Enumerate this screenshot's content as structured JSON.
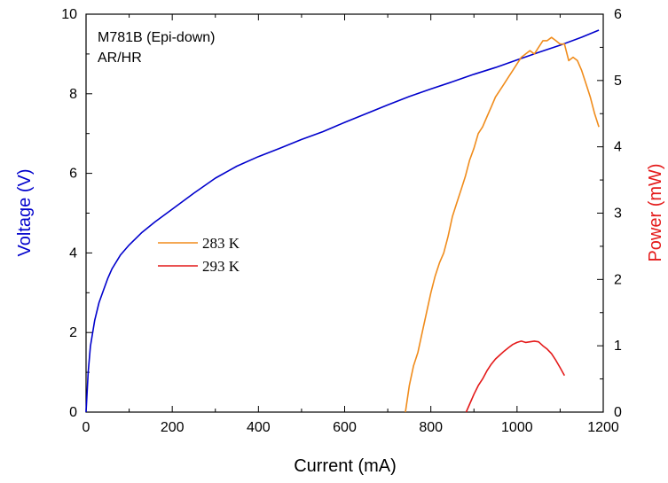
{
  "chart_data": {
    "type": "line",
    "annotation": [
      "M781B (Epi-down)",
      "AR/HR"
    ],
    "xlabel": "Current (mA)",
    "ylabel": "Voltage (V)",
    "y2label": "Power (mW)",
    "xlim": [
      0,
      1200
    ],
    "ylim": [
      0,
      10
    ],
    "y2lim": [
      0,
      6
    ],
    "xticks": [
      0,
      200,
      400,
      600,
      800,
      1000,
      1200
    ],
    "yticks": [
      0,
      2,
      4,
      6,
      8,
      10
    ],
    "y2ticks": [
      0,
      1,
      2,
      3,
      4,
      5,
      6
    ],
    "legend_position": "center-left",
    "grid": false,
    "series": [
      {
        "name": "",
        "axis": "left",
        "color": "#0000cc",
        "x": [
          0,
          5,
          10,
          20,
          30,
          40,
          50,
          60,
          80,
          100,
          130,
          160,
          200,
          250,
          300,
          350,
          400,
          450,
          500,
          550,
          600,
          650,
          700,
          750,
          800,
          850,
          900,
          950,
          1000,
          1050,
          1100,
          1150,
          1190
        ],
        "y": [
          0,
          1.0,
          1.65,
          2.3,
          2.75,
          3.05,
          3.35,
          3.6,
          3.95,
          4.2,
          4.52,
          4.78,
          5.1,
          5.5,
          5.88,
          6.18,
          6.42,
          6.63,
          6.85,
          7.05,
          7.28,
          7.5,
          7.72,
          7.93,
          8.12,
          8.3,
          8.49,
          8.66,
          8.85,
          9.04,
          9.22,
          9.42,
          9.6
        ]
      },
      {
        "name": "283 K",
        "axis": "right",
        "color": "#f08c1c",
        "x": [
          741,
          750,
          760,
          770,
          780,
          790,
          800,
          810,
          820,
          830,
          840,
          850,
          860,
          870,
          880,
          890,
          900,
          910,
          920,
          930,
          940,
          950,
          960,
          970,
          980,
          990,
          1000,
          1010,
          1020,
          1030,
          1040,
          1050,
          1060,
          1070,
          1080,
          1090,
          1100,
          1110,
          1120,
          1130,
          1140,
          1150,
          1160,
          1170,
          1180,
          1190
        ],
        "y": [
          0,
          0.4,
          0.7,
          0.9,
          1.2,
          1.5,
          1.8,
          2.05,
          2.25,
          2.4,
          2.65,
          2.95,
          3.15,
          3.35,
          3.55,
          3.8,
          3.98,
          4.2,
          4.3,
          4.45,
          4.6,
          4.75,
          4.85,
          4.95,
          5.05,
          5.15,
          5.25,
          5.35,
          5.4,
          5.45,
          5.4,
          5.5,
          5.6,
          5.6,
          5.65,
          5.6,
          5.55,
          5.55,
          5.3,
          5.35,
          5.3,
          5.15,
          4.95,
          4.75,
          4.5,
          4.3
        ]
      },
      {
        "name": "293 K",
        "axis": "right",
        "color": "#e41a1a",
        "x": [
          882,
          890,
          900,
          910,
          920,
          930,
          940,
          950,
          960,
          970,
          980,
          990,
          1000,
          1010,
          1020,
          1030,
          1040,
          1050,
          1060,
          1070,
          1080,
          1090,
          1100,
          1110
        ],
        "y": [
          0,
          0.12,
          0.27,
          0.4,
          0.5,
          0.62,
          0.72,
          0.8,
          0.86,
          0.92,
          0.97,
          1.02,
          1.05,
          1.07,
          1.05,
          1.06,
          1.07,
          1.06,
          1.0,
          0.95,
          0.88,
          0.78,
          0.67,
          0.55
        ]
      }
    ]
  }
}
